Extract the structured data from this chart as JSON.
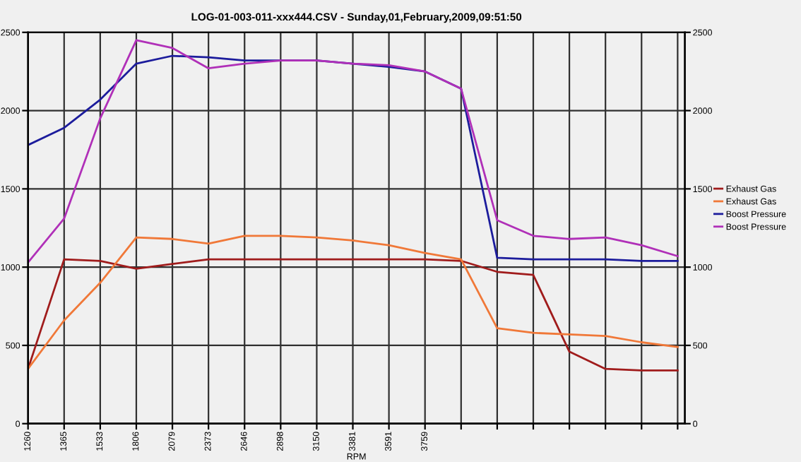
{
  "chart_data": {
    "type": "line",
    "title": "LOG-01-003-011-xxx444.CSV - Sunday,01,February,2009,09:51:50",
    "xlabel": "RPM",
    "categories": [
      "1260",
      "1365",
      "1533",
      "1806",
      "2079",
      "2373",
      "2646",
      "2898",
      "3150",
      "3381",
      "3591",
      "3759",
      null,
      null,
      null,
      null,
      null,
      null,
      null
    ],
    "ylim": [
      0,
      2500
    ],
    "yticks": [
      0,
      500,
      1000,
      1500,
      2000,
      2500
    ],
    "y2lim": [
      0,
      2500
    ],
    "y2ticks": [
      0,
      500,
      1000,
      1500,
      2000,
      2500
    ],
    "grid": true,
    "legend": "right",
    "marker": "none",
    "line_style": "solid",
    "series": [
      {
        "name": "Exhaust Gas",
        "color": "#a01c1c",
        "values": [
          350,
          1050,
          1040,
          990,
          1020,
          1050,
          1050,
          1050,
          1050,
          1050,
          1050,
          1050,
          1040,
          970,
          950,
          460,
          350,
          340,
          340
        ]
      },
      {
        "name": "Exhaust Gas",
        "color": "#f07838",
        "values": [
          350,
          660,
          900,
          1190,
          1180,
          1150,
          1200,
          1200,
          1190,
          1170,
          1140,
          1090,
          1050,
          610,
          580,
          570,
          560,
          520,
          490
        ]
      },
      {
        "name": "Boost Pressure",
        "color": "#1c1c9c",
        "values": [
          1780,
          1890,
          2070,
          2300,
          2350,
          2340,
          2320,
          2320,
          2320,
          2300,
          2280,
          2250,
          2140,
          1060,
          1050,
          1050,
          1050,
          1040,
          1040
        ]
      },
      {
        "name": "Boost Pressure",
        "color": "#b030b8",
        "values": [
          1030,
          1310,
          1950,
          2450,
          2400,
          2270,
          2300,
          2320,
          2320,
          2300,
          2290,
          2250,
          2140,
          1300,
          1200,
          1180,
          1190,
          1140,
          1070
        ]
      }
    ]
  }
}
